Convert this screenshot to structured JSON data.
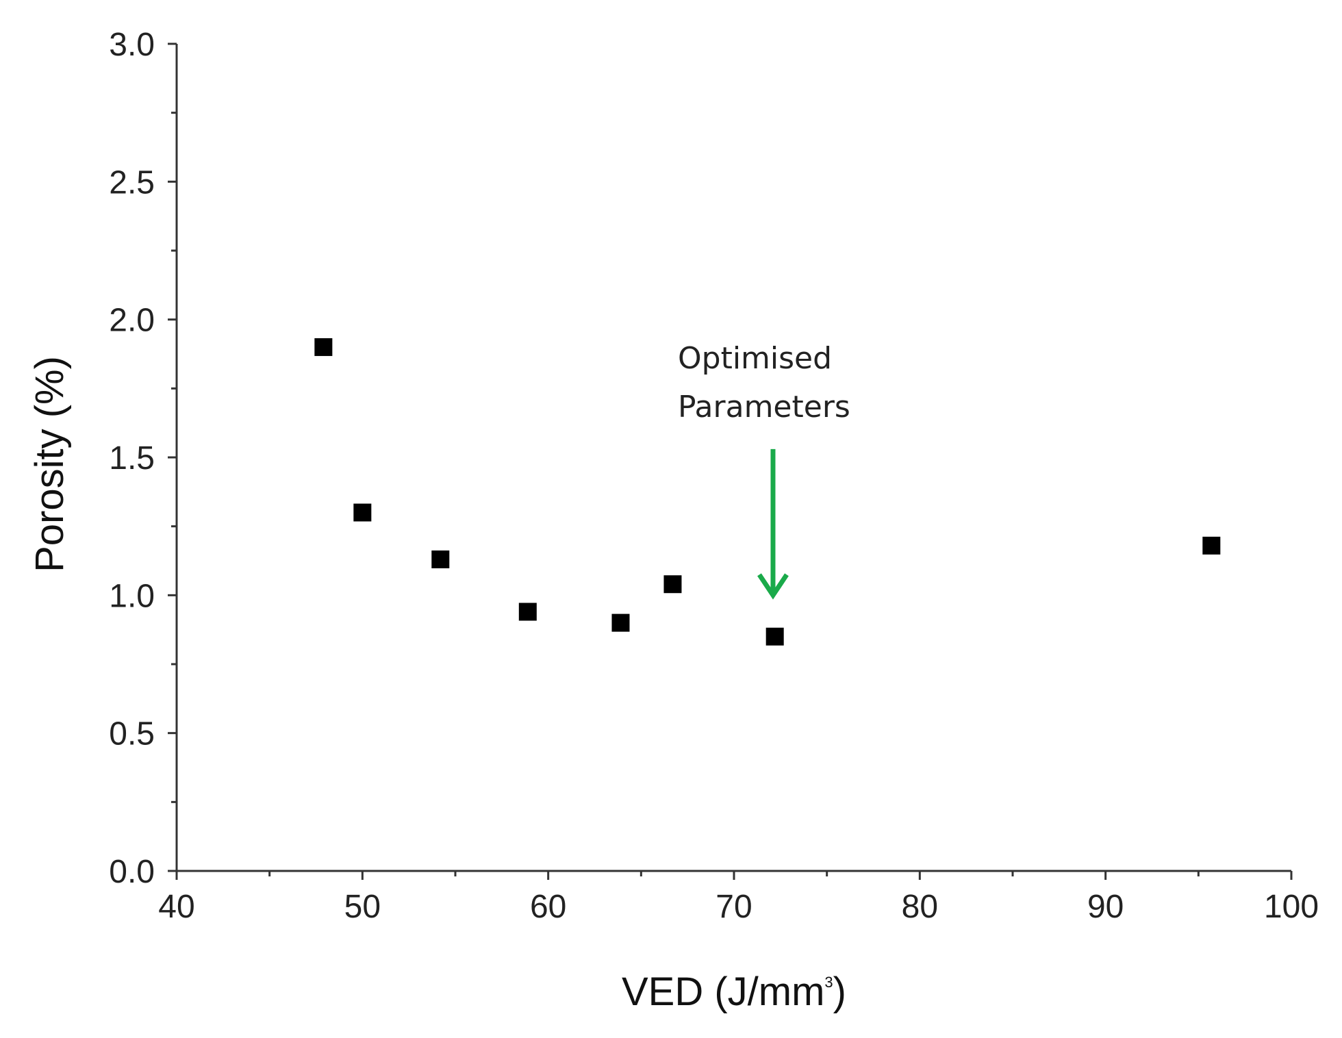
{
  "chart_data": {
    "type": "scatter",
    "title": "",
    "xlabel": "VED (J/mm",
    "xlabel_sup": "3",
    "xlabel_end": ")",
    "ylabel": "Porosity (%)",
    "xlim": [
      40,
      100
    ],
    "ylim": [
      0,
      3.0
    ],
    "xticks": [
      "40",
      "50",
      "60",
      "70",
      "80",
      "90",
      "100"
    ],
    "xtick_values": [
      40,
      50,
      60,
      70,
      80,
      90,
      100
    ],
    "yticks": [
      "0.0",
      "0.5",
      "1.0",
      "1.5",
      "2.0",
      "2.5",
      "3.0"
    ],
    "ytick_values": [
      0,
      0.5,
      1.0,
      1.5,
      2.0,
      2.5,
      3.0
    ],
    "series": [
      {
        "name": "Porosity",
        "marker": "square",
        "color": "#000000",
        "x": [
          47.9,
          50.0,
          54.2,
          58.9,
          63.9,
          66.7,
          72.2,
          95.7
        ],
        "y": [
          1.9,
          1.3,
          1.13,
          0.94,
          0.9,
          1.04,
          0.85,
          1.18
        ]
      }
    ],
    "annotation": {
      "line1": "Optimised",
      "line2": "Parameters",
      "arrow_color": "#1aaa4a",
      "arrow_x": 72.1,
      "arrow_y_from": 1.53,
      "arrow_y_to": 1.0
    },
    "grid": false
  }
}
